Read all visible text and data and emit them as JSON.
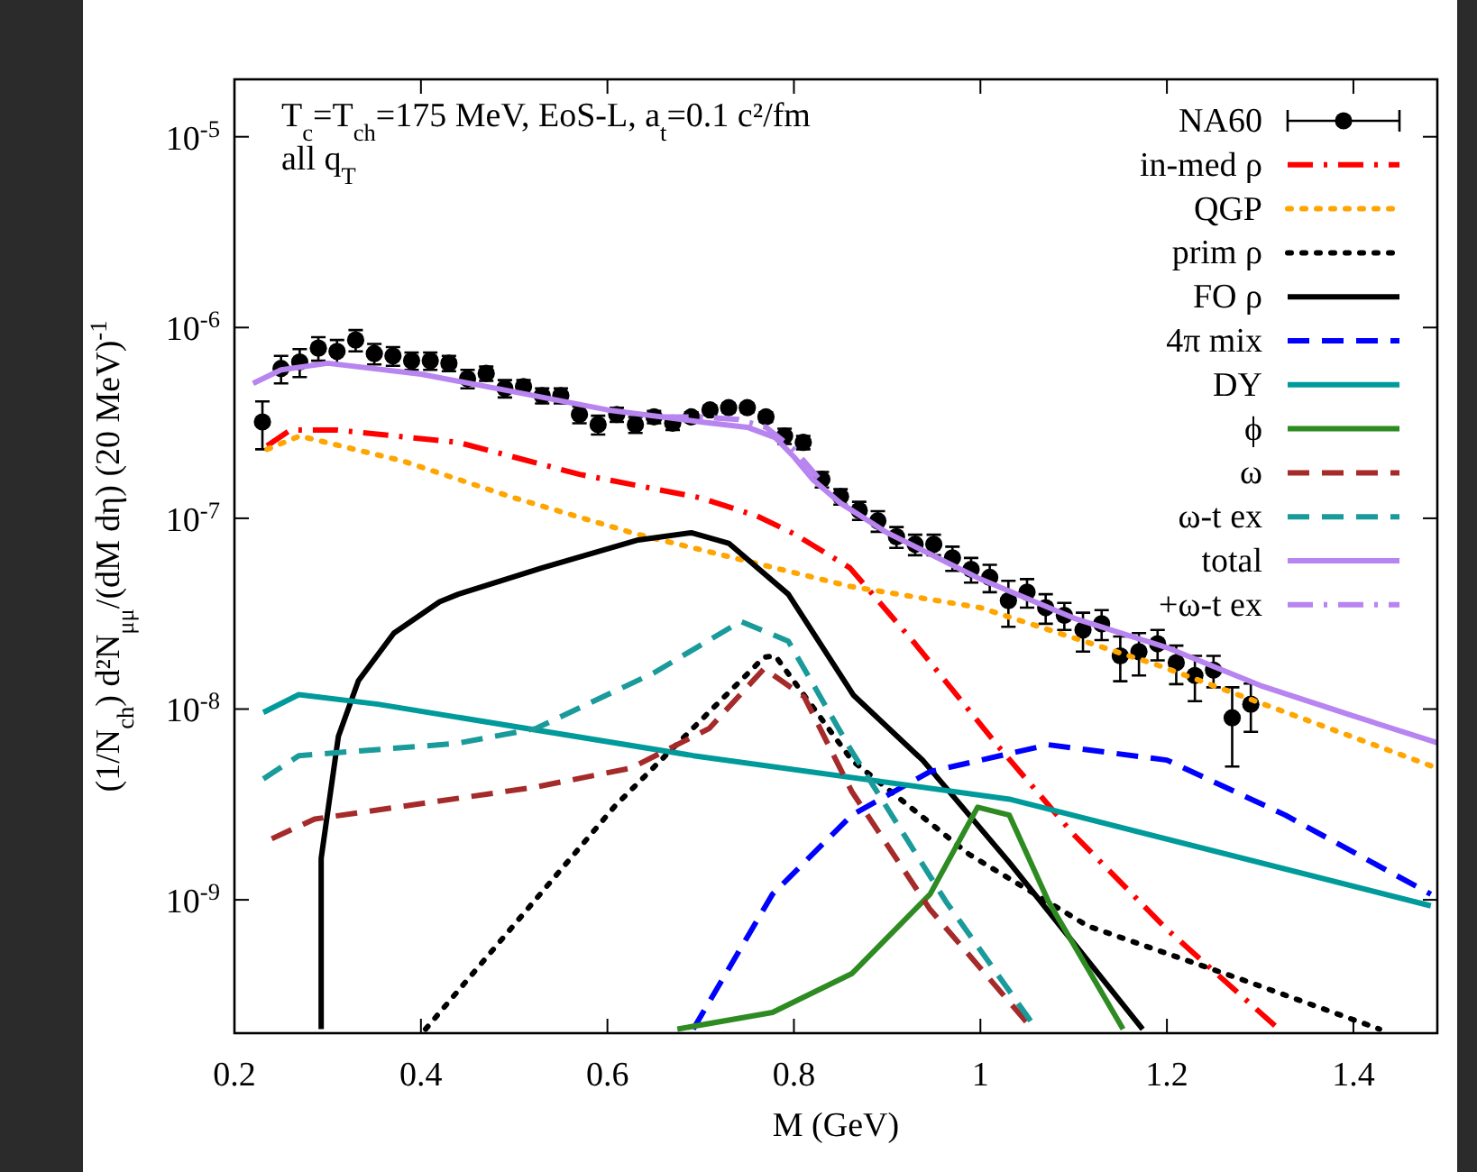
{
  "chart_data": {
    "type": "line",
    "annotations": [
      "T$_{c}$=T$_{ch}$=175 MeV, EoS-L, a$_{t}$=0.1 c²/fm",
      "all q$_{T}$"
    ],
    "xlabel": "M (GeV)",
    "ylabel": "(1/N$_{ch}$) d²N$_{μμ}$/(dM dη) (20 MeV)$^{-1}$",
    "log": "y",
    "xlim": [
      0.2,
      1.49
    ],
    "xticks": [
      {
        "value": 0.2,
        "label": "0.2"
      },
      {
        "value": 0.4,
        "label": "0.4"
      },
      {
        "value": 0.6,
        "label": "0.6"
      },
      {
        "value": 0.8,
        "label": "0.8"
      },
      1,
      {
        "value": 1.2,
        "label": "1.2"
      },
      {
        "value": 1.4,
        "label": "1.4"
      }
    ],
    "ylim": [
      2e-10,
      2e-05
    ],
    "yticks": [
      {
        "value": 1e-09,
        "label": "10$^{-9}$"
      },
      {
        "value": 1e-08,
        "label": "10$^{-8}$"
      },
      {
        "value": 1e-07,
        "label": "10$^{-7}$"
      },
      {
        "value": 1e-06,
        "label": "10$^{-6}$"
      },
      {
        "value": 1e-05,
        "label": "10$^{-5}$"
      }
    ],
    "legend": "top right",
    "grid": false,
    "series": [
      {
        "name": "NA60",
        "type": "scatter",
        "marker": "circle",
        "color": "#000000",
        "x": [
          0.23,
          0.25,
          0.27,
          0.29,
          0.31,
          0.33,
          0.35,
          0.37,
          0.39,
          0.41,
          0.43,
          0.45,
          0.47,
          0.49,
          0.51,
          0.53,
          0.55,
          0.57,
          0.59,
          0.61,
          0.63,
          0.65,
          0.67,
          0.69,
          0.71,
          0.73,
          0.75,
          0.77,
          0.79,
          0.81,
          0.83,
          0.85,
          0.87,
          0.89,
          0.91,
          0.93,
          0.95,
          0.97,
          0.99,
          1.01,
          1.03,
          1.05,
          1.07,
          1.09,
          1.11,
          1.13,
          1.15,
          1.17,
          1.19,
          1.21,
          1.23,
          1.25,
          1.27,
          1.29
        ],
        "values": [
          3.2e-07,
          6.1e-07,
          6.6e-07,
          7.8e-07,
          7.5e-07,
          8.6e-07,
          7.3e-07,
          7.1e-07,
          6.7e-07,
          6.7e-07,
          6.5e-07,
          5.4e-07,
          5.75e-07,
          4.8e-07,
          4.9e-07,
          4.4e-07,
          4.4e-07,
          3.5e-07,
          3.1e-07,
          3.5e-07,
          3.1e-07,
          3.4e-07,
          3.15e-07,
          3.4e-07,
          3.7e-07,
          3.8e-07,
          3.8e-07,
          3.4e-07,
          2.7e-07,
          2.5e-07,
          1.6e-07,
          1.3e-07,
          1.1e-07,
          9.7e-08,
          8e-08,
          7.3e-08,
          7.3e-08,
          6.2e-08,
          5.4e-08,
          4.9e-08,
          3.7e-08,
          4.1e-08,
          3.4e-08,
          3.1e-08,
          2.6e-08,
          2.8e-08,
          1.9e-08,
          2e-08,
          2.2e-08,
          1.75e-08,
          1.5e-08,
          1.6e-08,
          9e-09,
          1.06e-08
        ],
        "errors": [
          9e-08,
          1e-07,
          1.1e-07,
          1.1e-07,
          1.1e-07,
          1.1e-07,
          9e-08,
          8e-08,
          7e-08,
          7e-08,
          6e-08,
          6e-08,
          5e-08,
          5e-08,
          4e-08,
          4e-08,
          4e-08,
          3.5e-08,
          3.5e-08,
          3e-08,
          3e-08,
          2.5e-08,
          2.5e-08,
          2e-08,
          2e-08,
          2e-08,
          2e-08,
          2e-08,
          2.5e-08,
          2e-08,
          1.5e-08,
          1.2e-08,
          1.2e-08,
          1.2e-08,
          1e-08,
          9e-09,
          9e-09,
          9e-09,
          8e-09,
          8e-09,
          1e-08,
          7e-09,
          6e-09,
          5e-09,
          6e-09,
          5e-09,
          5e-09,
          5e-09,
          4e-09,
          4e-09,
          4e-09,
          3e-09,
          4e-09,
          3e-09
        ]
      },
      {
        "name": "in-med ρ",
        "line_style": "dashdot",
        "color": "#ff0000",
        "x": [
          0.235,
          0.26,
          0.31,
          0.44,
          0.57,
          0.7,
          0.76,
          0.8,
          0.86,
          0.93,
          1.02,
          1.1,
          1.2,
          1.32
        ],
        "values": [
          2.4e-07,
          2.9e-07,
          2.9e-07,
          2.5e-07,
          1.7e-07,
          1.28e-07,
          1.03e-07,
          8.3e-08,
          5.5e-08,
          2.2e-08,
          6.3e-09,
          2.2e-09,
          7e-10,
          2.1e-10
        ]
      },
      {
        "name": "QGP",
        "line_style": "dotted",
        "color": "#ffa500",
        "x": [
          0.235,
          0.27,
          0.38,
          0.5,
          0.63,
          0.76,
          0.86,
          1.0,
          1.19,
          1.49
        ],
        "values": [
          2.3e-07,
          2.7e-07,
          2e-07,
          1.28e-07,
          8.3e-08,
          5.8e-08,
          4.4e-08,
          3.4e-08,
          1.7e-08,
          4.9e-09
        ]
      },
      {
        "name": "prim ρ",
        "line_style": "dotted",
        "color": "#000000",
        "x": [
          0.405,
          0.608,
          0.768,
          0.78,
          0.862,
          0.988,
          1.115,
          1.285,
          1.428
        ],
        "values": [
          2.1e-10,
          3.1e-09,
          1.87e-08,
          1.9e-08,
          5.4e-09,
          1.73e-09,
          7.3e-10,
          3.75e-10,
          2.1e-10
        ]
      },
      {
        "name": "FO ρ",
        "line_style": "solid",
        "color": "#000000",
        "x": [
          0.293,
          0.293,
          0.3115,
          0.333,
          0.371,
          0.42,
          0.44,
          0.53,
          0.633,
          0.69,
          0.73,
          0.794,
          0.864,
          0.938,
          1.031,
          1.174
        ],
        "values": [
          2.1e-10,
          1.65e-09,
          7.2e-09,
          1.41e-08,
          2.5e-08,
          3.65e-08,
          4e-08,
          5.5e-08,
          7.7e-08,
          8.4e-08,
          7.4e-08,
          4e-08,
          1.18e-08,
          5.4e-09,
          1.57e-09,
          2.1e-10
        ]
      },
      {
        "name": "4π mix",
        "line_style": "dashed",
        "color": "#0000ff",
        "x": [
          0.692,
          0.777,
          0.862,
          0.946,
          1.073,
          1.2,
          1.327,
          1.483
        ],
        "values": [
          2.1e-10,
          1.07e-09,
          2.78e-09,
          4.7e-09,
          6.5e-09,
          5.4e-09,
          2.78e-09,
          1.07e-09
        ]
      },
      {
        "name": "DY",
        "line_style": "solid",
        "color": "#009a9a",
        "x": [
          0.231,
          0.269,
          0.354,
          0.692,
          1.031,
          1.483
        ],
        "values": [
          9.6e-09,
          1.19e-08,
          1.06e-08,
          5.7e-09,
          3.37e-09,
          9.3e-10
        ]
      },
      {
        "name": "ϕ",
        "line_style": "solid",
        "color": "#2e8b22",
        "x": [
          0.675,
          0.777,
          0.862,
          0.946,
          0.997,
          1.031,
          1.073,
          1.153
        ],
        "values": [
          2.1e-10,
          2.57e-10,
          4.1e-10,
          1.07e-09,
          3.06e-09,
          2.78e-09,
          9.8e-10,
          2.1e-10
        ]
      },
      {
        "name": "ω",
        "line_style": "dashed",
        "color": "#a52a2a",
        "x": [
          0.24,
          0.286,
          0.523,
          0.625,
          0.709,
          0.768,
          0.811,
          0.862,
          0.946,
          1.056
        ],
        "values": [
          2.09e-09,
          2.65e-09,
          3.9e-09,
          4.9e-09,
          7.9e-09,
          1.63e-08,
          1.16e-08,
          3.7e-09,
          8.9e-10,
          2.1e-10
        ]
      },
      {
        "name": "ω-t ex",
        "line_style": "dashed",
        "color": "#1a9a9a",
        "x": [
          0.231,
          0.269,
          0.438,
          0.523,
          0.65,
          0.743,
          0.794,
          0.862,
          0.963,
          1.06
        ],
        "values": [
          4.3e-09,
          5.7e-09,
          6.6e-09,
          7.9e-09,
          1.55e-08,
          2.88e-08,
          2.27e-08,
          6e-09,
          9.8e-10,
          2.1e-10
        ]
      },
      {
        "name": "total",
        "line_style": "solid",
        "color": "#b784f0",
        "x": [
          0.22,
          0.25,
          0.3,
          0.4,
          0.5,
          0.6,
          0.7,
          0.75,
          0.78,
          0.8,
          0.82,
          0.85,
          0.9,
          1.0,
          1.1,
          1.2,
          1.3,
          1.4,
          1.49
        ],
        "values": [
          5.1e-07,
          6e-07,
          6.5e-07,
          5.7e-07,
          4.6e-07,
          3.7e-07,
          3.2e-07,
          3e-07,
          2.65e-07,
          2.1e-07,
          1.6e-07,
          1.2e-07,
          8.4e-08,
          4.8e-08,
          3e-08,
          2.1e-08,
          1.33e-08,
          9.2e-09,
          6.65e-09
        ]
      },
      {
        "name": "+ω-t ex",
        "line_style": "dashdot",
        "color": "#b784f0",
        "x": [
          0.66,
          0.7,
          0.74,
          0.77,
          0.8,
          0.83
        ],
        "values": [
          3.4e-07,
          3.4e-07,
          3.3e-07,
          3e-07,
          2.3e-07,
          1.55e-07
        ]
      }
    ]
  }
}
